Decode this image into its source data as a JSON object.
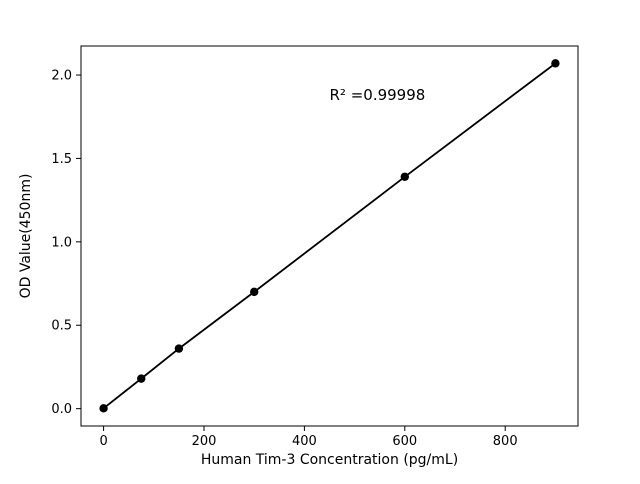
{
  "chart_data": {
    "type": "line",
    "title": "",
    "xlabel": "Human Tim-3 Concentration (pg/mL)",
    "ylabel": "OD Value(450nm)",
    "x": [
      0,
      75,
      150,
      300,
      600,
      900
    ],
    "y": [
      0.002,
      0.18,
      0.36,
      0.7,
      1.39,
      2.07
    ],
    "xlim": [
      -45,
      945
    ],
    "ylim": [
      -0.104,
      2.174
    ],
    "x_tick_values": [
      0,
      200,
      400,
      600,
      800
    ],
    "x_tick_labels": [
      "0",
      "200",
      "400",
      "600",
      "800"
    ],
    "y_tick_values": [
      0.0,
      0.5,
      1.0,
      1.5,
      2.0
    ],
    "y_tick_labels": [
      "0.0",
      "0.5",
      "1.0",
      "1.5",
      "2.0"
    ],
    "annotation": {
      "text": "R² =0.99998",
      "x": 450,
      "y": 1.85
    },
    "marker": "o",
    "grid": false,
    "legend": null,
    "line_color": "#000000",
    "marker_color": "#000000",
    "axis_color": "#000000",
    "background_color": "#ffffff"
  }
}
